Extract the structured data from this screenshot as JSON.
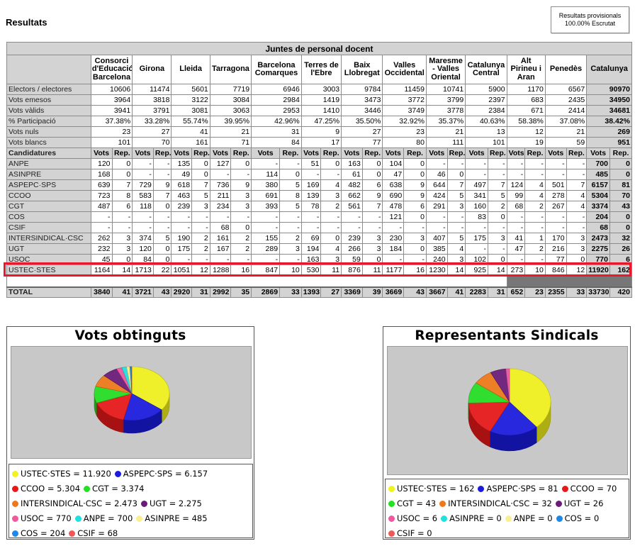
{
  "page": {
    "title": "Resultats"
  },
  "status_box": {
    "line1": "Resultats provisionals",
    "line2": "100.00% Escrutat"
  },
  "table": {
    "title": "Juntes de personal docent",
    "regions": [
      "Consorci d'Educació Barcelona",
      "Girona",
      "Lleida",
      "Tarragona",
      "Barcelona Comarques",
      "Terres de l'Ebre",
      "Baix Llobregat",
      "Valles Occidental",
      "Maresme - Valles Oriental",
      "Catalunya Central",
      "Alt Pirineu i Aran",
      "Penedès"
    ],
    "total_region": "Catalunya",
    "stats": [
      {
        "label": "Electors / electores",
        "values": [
          "10606",
          "11474",
          "5601",
          "7719",
          "6946",
          "3003",
          "9784",
          "11459",
          "10741",
          "5900",
          "1170",
          "6567"
        ],
        "total": "90970"
      },
      {
        "label": "Vots emesos",
        "values": [
          "3964",
          "3818",
          "3122",
          "3084",
          "2984",
          "1419",
          "3473",
          "3772",
          "3799",
          "2397",
          "683",
          "2435"
        ],
        "total": "34950"
      },
      {
        "label": "Vots vàlids",
        "values": [
          "3941",
          "3791",
          "3081",
          "3063",
          "2953",
          "1410",
          "3446",
          "3749",
          "3778",
          "2384",
          "671",
          "2414"
        ],
        "total": "34681"
      },
      {
        "label": "% Participació",
        "values": [
          "37.38%",
          "33.28%",
          "55.74%",
          "39.95%",
          "42.96%",
          "47.25%",
          "35.50%",
          "32.92%",
          "35.37%",
          "40.63%",
          "58.38%",
          "37.08%"
        ],
        "total": "38.42%"
      },
      {
        "label": "Vots nuls",
        "values": [
          "23",
          "27",
          "41",
          "21",
          "31",
          "9",
          "27",
          "23",
          "21",
          "13",
          "12",
          "21"
        ],
        "total": "269"
      },
      {
        "label": "Vots blancs",
        "values": [
          "101",
          "70",
          "161",
          "71",
          "84",
          "17",
          "77",
          "80",
          "111",
          "101",
          "19",
          "59"
        ],
        "total": "951"
      }
    ],
    "candidatures_label": "Candidatures",
    "col_votes": "Vots",
    "col_rep": "Rep.",
    "parties": [
      {
        "name": "ANPE",
        "cells": [
          "120",
          "0",
          "-",
          "-",
          "135",
          "0",
          "127",
          "0",
          "-",
          "-",
          "51",
          "0",
          "163",
          "0",
          "104",
          "0",
          "-",
          "-",
          "-",
          "-",
          "-",
          "-",
          "-",
          "-"
        ],
        "total_votes": "700",
        "total_rep": "0"
      },
      {
        "name": "ASINPRE",
        "cells": [
          "168",
          "0",
          "-",
          "-",
          "49",
          "0",
          "-",
          "-",
          "114",
          "0",
          "-",
          "-",
          "61",
          "0",
          "47",
          "0",
          "46",
          "0",
          "-",
          "-",
          "-",
          "-",
          "-",
          "-"
        ],
        "total_votes": "485",
        "total_rep": "0"
      },
      {
        "name": "ASPEPC·SPS",
        "cells": [
          "639",
          "7",
          "729",
          "9",
          "618",
          "7",
          "736",
          "9",
          "380",
          "5",
          "169",
          "4",
          "482",
          "6",
          "638",
          "9",
          "644",
          "7",
          "497",
          "7",
          "124",
          "4",
          "501",
          "7"
        ],
        "total_votes": "6157",
        "total_rep": "81"
      },
      {
        "name": "CCOO",
        "cells": [
          "723",
          "8",
          "583",
          "7",
          "463",
          "5",
          "211",
          "3",
          "691",
          "8",
          "139",
          "3",
          "662",
          "9",
          "690",
          "9",
          "424",
          "5",
          "341",
          "5",
          "99",
          "4",
          "278",
          "4"
        ],
        "total_votes": "5304",
        "total_rep": "70"
      },
      {
        "name": "CGT",
        "cells": [
          "487",
          "6",
          "118",
          "0",
          "239",
          "3",
          "234",
          "3",
          "393",
          "5",
          "78",
          "2",
          "561",
          "7",
          "478",
          "6",
          "291",
          "3",
          "160",
          "2",
          "68",
          "2",
          "267",
          "4"
        ],
        "total_votes": "3374",
        "total_rep": "43"
      },
      {
        "name": "COS",
        "cells": [
          "-",
          "-",
          "-",
          "-",
          "-",
          "-",
          "-",
          "-",
          "-",
          "-",
          "-",
          "-",
          "-",
          "-",
          "121",
          "0",
          "-",
          "-",
          "83",
          "0",
          "-",
          "-",
          "-",
          "-"
        ],
        "total_votes": "204",
        "total_rep": "0"
      },
      {
        "name": "CSIF",
        "cells": [
          "-",
          "-",
          "-",
          "-",
          "-",
          "-",
          "68",
          "0",
          "-",
          "-",
          "-",
          "-",
          "-",
          "-",
          "-",
          "-",
          "-",
          "-",
          "-",
          "-",
          "-",
          "-",
          "-",
          "-"
        ],
        "total_votes": "68",
        "total_rep": "0"
      },
      {
        "name": "INTERSINDICAL·CSC",
        "cells": [
          "262",
          "3",
          "374",
          "5",
          "190",
          "2",
          "161",
          "2",
          "155",
          "2",
          "69",
          "0",
          "239",
          "3",
          "230",
          "3",
          "407",
          "5",
          "175",
          "3",
          "41",
          "1",
          "170",
          "3"
        ],
        "total_votes": "2473",
        "total_rep": "32"
      },
      {
        "name": "UGT",
        "cells": [
          "232",
          "3",
          "120",
          "0",
          "175",
          "2",
          "167",
          "2",
          "289",
          "3",
          "194",
          "4",
          "266",
          "3",
          "184",
          "0",
          "385",
          "4",
          "-",
          "-",
          "47",
          "2",
          "216",
          "3"
        ],
        "total_votes": "2275",
        "total_rep": "26"
      },
      {
        "name": "USOC",
        "cells": [
          "45",
          "0",
          "84",
          "0",
          "-",
          "-",
          "-",
          "-",
          "-",
          "-",
          "163",
          "3",
          "59",
          "0",
          "-",
          "-",
          "240",
          "3",
          "102",
          "0",
          "-",
          "-",
          "77",
          "0"
        ],
        "total_votes": "770",
        "total_rep": "6"
      },
      {
        "name": "USTEC·STES",
        "cells": [
          "1164",
          "14",
          "1713",
          "22",
          "1051",
          "12",
          "1288",
          "16",
          "847",
          "10",
          "530",
          "11",
          "876",
          "11",
          "1177",
          "16",
          "1230",
          "14",
          "925",
          "14",
          "273",
          "10",
          "846",
          "12"
        ],
        "total_votes": "11920",
        "total_rep": "162"
      }
    ],
    "total_row": {
      "label": "TOTAL",
      "cells": [
        "3840",
        "41",
        "3721",
        "43",
        "2920",
        "31",
        "2992",
        "35",
        "2869",
        "33",
        "1393",
        "27",
        "3369",
        "39",
        "3669",
        "43",
        "3667",
        "41",
        "2283",
        "31",
        "652",
        "23",
        "2355",
        "33"
      ],
      "total_votes": "33730",
      "total_rep": "420"
    }
  },
  "votes_chart": {
    "title": "Vots obtinguts",
    "legend": [
      {
        "label": "USTEC·STES = 11.920",
        "color": "#f2f21c"
      },
      {
        "label": "ASPEPC·SPS = 6.157",
        "color": "#1a1ae0"
      },
      {
        "label": "CCOO = 5.304",
        "color": "#e81818"
      },
      {
        "label": "CGT = 3.374",
        "color": "#22e022"
      },
      {
        "label": "INTERSINDICAL·CSC = 2.473",
        "color": "#f07818"
      },
      {
        "label": "UGT = 2.275",
        "color": "#6a1a78"
      },
      {
        "label": "USOC = 770",
        "color": "#f058a0"
      },
      {
        "label": "ANPE = 700",
        "color": "#22e0e0"
      },
      {
        "label": "ASINPRE = 485",
        "color": "#f8f090"
      },
      {
        "label": "COS = 204",
        "color": "#1e88e8"
      },
      {
        "label": "CSIF = 68",
        "color": "#f05858"
      }
    ],
    "slices": [
      11920,
      6157,
      5304,
      3374,
      2473,
      2275,
      770,
      700,
      485,
      204,
      68
    ]
  },
  "reps_chart": {
    "title": "Representants Sindicals",
    "legend": [
      {
        "label": "USTEC·STES = 162",
        "color": "#f2f21c"
      },
      {
        "label": "ASPEPC·SPS = 81",
        "color": "#1a1ae0"
      },
      {
        "label": "CCOO = 70",
        "color": "#e81818"
      },
      {
        "label": "CGT = 43",
        "color": "#22e022"
      },
      {
        "label": "INTERSINDICAL·CSC = 32",
        "color": "#f07818"
      },
      {
        "label": "UGT = 26",
        "color": "#6a1a78"
      },
      {
        "label": "USOC = 6",
        "color": "#f058a0"
      },
      {
        "label": "ASINPRE = 0",
        "color": "#22e0e0"
      },
      {
        "label": "ANPE = 0",
        "color": "#f8f090"
      },
      {
        "label": "COS = 0",
        "color": "#1e88e8"
      },
      {
        "label": "CSIF = 0",
        "color": "#f05858"
      }
    ],
    "slices": [
      162,
      81,
      70,
      43,
      32,
      26,
      6,
      0,
      0,
      0,
      0
    ]
  }
}
